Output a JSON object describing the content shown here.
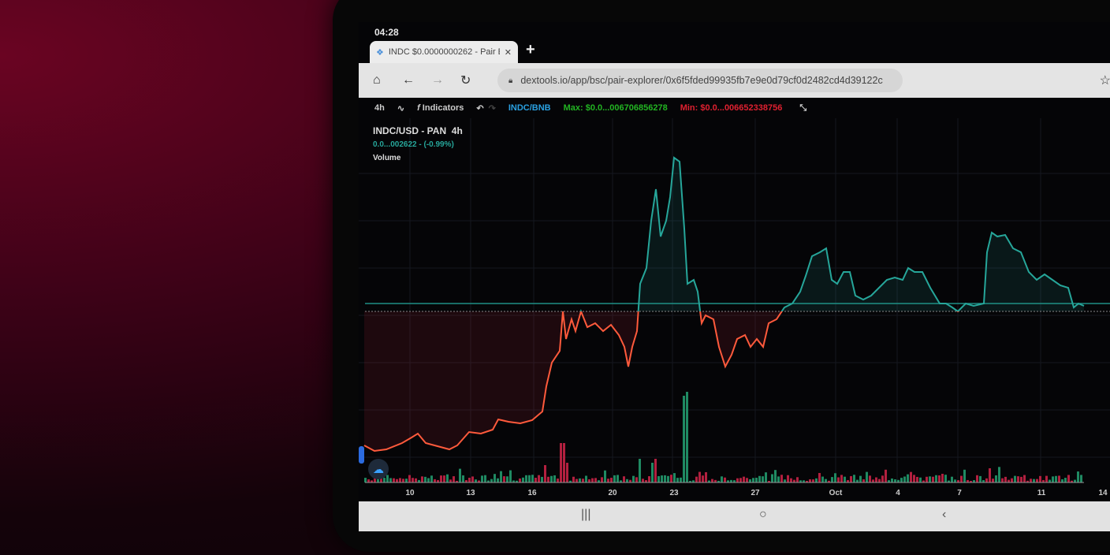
{
  "status_bar": {
    "time": "04:28"
  },
  "browser": {
    "tab_title": "INDC $0.0000000262 - Pair E",
    "close": "✕",
    "new_tab": "+",
    "url": "dextools.io/app/bsc/pair-explorer/0x6f5fded99935fb7e9e0d79cf0d2482cd4d39122c"
  },
  "toolbar": {
    "interval": "4h",
    "indicators": "Indicators",
    "pair": "INDC/BNB",
    "max": "Max: $0.0...006706856278",
    "min": "Min: $0.0...006652338756"
  },
  "chart": {
    "symbol": "INDC/USD - PAN  4h",
    "price_change": "0.0...002622 - (-0.99%)",
    "volume_label": "Volume",
    "x_ticks": [
      "10",
      "13",
      "16",
      "20",
      "23",
      "27",
      "Oct",
      "4",
      "7",
      "11",
      "14"
    ],
    "colors": {
      "up": "#26a69a",
      "down": "#ff5a3c",
      "vol_up": "#1f8a62",
      "vol_down": "#b3203f"
    }
  },
  "icons": [
    "home-icon",
    "back-icon",
    "forward-icon",
    "reload-icon",
    "lock-icon",
    "star-icon",
    "chart-type-icon",
    "function-icon",
    "undo-icon",
    "redo-icon",
    "fullscreen-icon",
    "cloud-icon"
  ]
}
